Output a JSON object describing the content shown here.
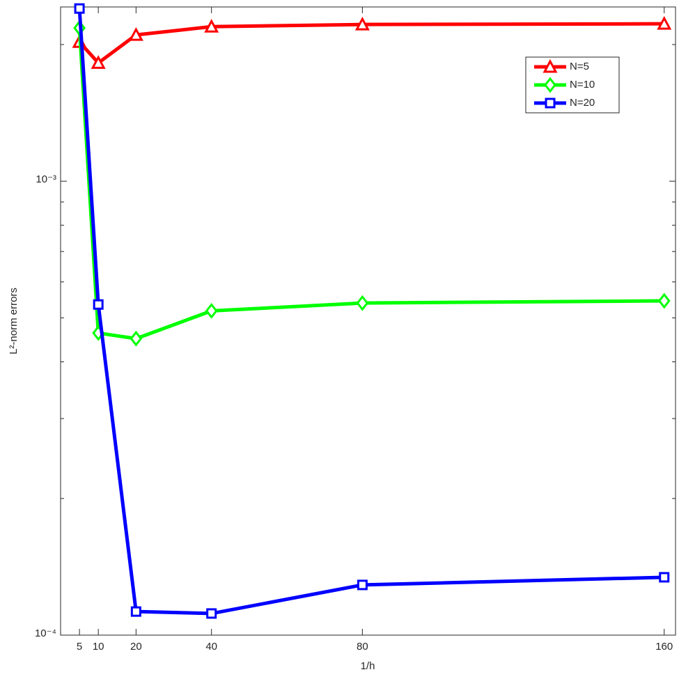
{
  "chart_data": {
    "type": "line",
    "x": [
      5,
      10,
      20,
      40,
      80,
      160
    ],
    "xlabel": "1/h",
    "ylabel": "L²-norm  errors",
    "xlim": [
      0,
      163
    ],
    "xticks": [
      5,
      10,
      20,
      40,
      80,
      160
    ],
    "ylim": [
      0.0001,
      0.00242
    ],
    "ylog": true,
    "yticks": [
      {
        "value": 0.0001,
        "label": "10⁻⁴"
      },
      {
        "value": 0.001,
        "label": "10⁻³"
      }
    ],
    "yminorticks": [
      0.0002,
      0.0003,
      0.0004,
      0.0005,
      0.0006,
      0.0007,
      0.0008,
      0.0009,
      0.002
    ],
    "grid": false,
    "legend": "upper right",
    "series": [
      {
        "name": "N=5",
        "color": "#ff0000",
        "marker": "triangle",
        "values": [
          0.002026,
          0.001822,
          0.0021,
          0.00219,
          0.002214,
          0.002222
        ]
      },
      {
        "name": "N=10",
        "color": "#00ff00",
        "marker": "diamond",
        "values": [
          0.002175,
          0.000463,
          0.00045,
          0.000518,
          0.000539,
          0.000545
        ]
      },
      {
        "name": "N=20",
        "color": "#0000ff",
        "marker": "square",
        "values": [
          0.002401,
          0.000535,
          0.0001127,
          0.0001116,
          0.000129,
          0.0001341
        ]
      }
    ]
  }
}
